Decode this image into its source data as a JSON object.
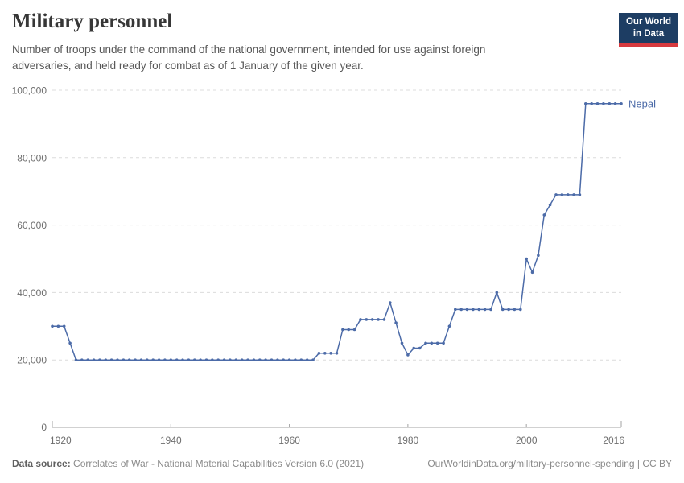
{
  "header": {
    "title": "Military personnel",
    "subtitle": "Number of troops under the command of the national government, intended for use against foreign adversaries, and held ready for combat as of 1 January of the given year."
  },
  "logo": {
    "line1": "Our World",
    "line2": "in Data",
    "bg_color": "#1d3d63",
    "bar_color": "#d73a3f"
  },
  "footer": {
    "source_label": "Data source:",
    "source_text": " Correlates of War - National Material Capabilities Version 6.0 (2021)",
    "right_text": "OurWorldinData.org/military-personnel-spending | CC BY"
  },
  "colors": {
    "axis_text": "#6e6e6e",
    "gridline": "#dcdcdc",
    "axis_line": "#a3a3a3",
    "title_text": "#373737",
    "subtitle_text": "#565656"
  },
  "chart_data": {
    "type": "line",
    "title": "Military personnel",
    "xlabel": "",
    "ylabel": "",
    "xlim": [
      1920,
      2016
    ],
    "ylim": [
      0,
      100000
    ],
    "grid": "horizontal-dashed",
    "legend": "line-end-label",
    "xticks": {
      "values": [
        1920,
        1940,
        1960,
        1980,
        2000,
        2016
      ],
      "labels": [
        "1920",
        "1940",
        "1960",
        "1980",
        "2000",
        "2016"
      ]
    },
    "yticks": {
      "values": [
        0,
        20000,
        40000,
        60000,
        80000,
        100000
      ],
      "labels": [
        "0",
        "20,000",
        "40,000",
        "60,000",
        "80,000",
        "100,000"
      ]
    },
    "series": [
      {
        "name": "Nepal",
        "color": "#4c6ba8",
        "points": [
          [
            1920,
            30000
          ],
          [
            1921,
            30000
          ],
          [
            1922,
            30000
          ],
          [
            1923,
            25000
          ],
          [
            1924,
            20000
          ],
          [
            1925,
            20000
          ],
          [
            1926,
            20000
          ],
          [
            1927,
            20000
          ],
          [
            1928,
            20000
          ],
          [
            1929,
            20000
          ],
          [
            1930,
            20000
          ],
          [
            1931,
            20000
          ],
          [
            1932,
            20000
          ],
          [
            1933,
            20000
          ],
          [
            1934,
            20000
          ],
          [
            1935,
            20000
          ],
          [
            1936,
            20000
          ],
          [
            1937,
            20000
          ],
          [
            1938,
            20000
          ],
          [
            1939,
            20000
          ],
          [
            1940,
            20000
          ],
          [
            1941,
            20000
          ],
          [
            1942,
            20000
          ],
          [
            1943,
            20000
          ],
          [
            1944,
            20000
          ],
          [
            1945,
            20000
          ],
          [
            1946,
            20000
          ],
          [
            1947,
            20000
          ],
          [
            1948,
            20000
          ],
          [
            1949,
            20000
          ],
          [
            1950,
            20000
          ],
          [
            1951,
            20000
          ],
          [
            1952,
            20000
          ],
          [
            1953,
            20000
          ],
          [
            1954,
            20000
          ],
          [
            1955,
            20000
          ],
          [
            1956,
            20000
          ],
          [
            1957,
            20000
          ],
          [
            1958,
            20000
          ],
          [
            1959,
            20000
          ],
          [
            1960,
            20000
          ],
          [
            1961,
            20000
          ],
          [
            1962,
            20000
          ],
          [
            1963,
            20000
          ],
          [
            1964,
            20000
          ],
          [
            1965,
            22000
          ],
          [
            1966,
            22000
          ],
          [
            1967,
            22000
          ],
          [
            1968,
            22000
          ],
          [
            1969,
            29000
          ],
          [
            1970,
            29000
          ],
          [
            1971,
            29000
          ],
          [
            1972,
            32000
          ],
          [
            1973,
            32000
          ],
          [
            1974,
            32000
          ],
          [
            1975,
            32000
          ],
          [
            1976,
            32000
          ],
          [
            1977,
            37000
          ],
          [
            1978,
            31000
          ],
          [
            1979,
            25000
          ],
          [
            1980,
            21500
          ],
          [
            1981,
            23500
          ],
          [
            1982,
            23500
          ],
          [
            1983,
            25000
          ],
          [
            1984,
            25000
          ],
          [
            1985,
            25000
          ],
          [
            1986,
            25000
          ],
          [
            1987,
            30000
          ],
          [
            1988,
            35000
          ],
          [
            1989,
            35000
          ],
          [
            1990,
            35000
          ],
          [
            1991,
            35000
          ],
          [
            1992,
            35000
          ],
          [
            1993,
            35000
          ],
          [
            1994,
            35000
          ],
          [
            1995,
            40000
          ],
          [
            1996,
            35000
          ],
          [
            1997,
            35000
          ],
          [
            1998,
            35000
          ],
          [
            1999,
            35000
          ],
          [
            2000,
            50000
          ],
          [
            2001,
            46000
          ],
          [
            2002,
            51000
          ],
          [
            2003,
            63000
          ],
          [
            2004,
            66000
          ],
          [
            2005,
            69000
          ],
          [
            2006,
            69000
          ],
          [
            2007,
            69000
          ],
          [
            2008,
            69000
          ],
          [
            2009,
            69000
          ],
          [
            2010,
            96000
          ],
          [
            2011,
            96000
          ],
          [
            2012,
            96000
          ],
          [
            2013,
            96000
          ],
          [
            2014,
            96000
          ],
          [
            2015,
            96000
          ],
          [
            2016,
            96000
          ]
        ]
      }
    ]
  }
}
